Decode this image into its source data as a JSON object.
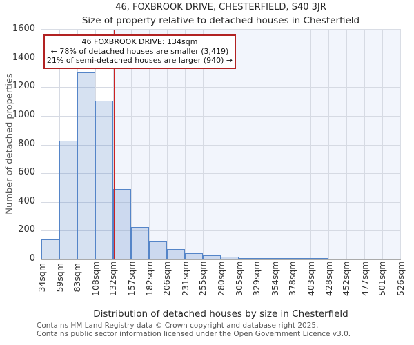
{
  "title": "46, FOXBROOK DRIVE, CHESTERFIELD, S40 3JR",
  "subtitle": "Size of property relative to detached houses in Chesterfield",
  "annotation": {
    "line1": "46 FOXBROOK DRIVE: 134sqm",
    "line2": "← 78% of detached houses are smaller (3,419)",
    "line3": "21% of semi-detached houses are larger (940) →"
  },
  "footer": {
    "line1": "Contains HM Land Registry data © Crown copyright and database right 2025.",
    "line2": "Contains public sector information licensed under the Open Government Licence v3.0."
  },
  "chart_data": {
    "type": "bar",
    "title": "46, FOXBROOK DRIVE, CHESTERFIELD, S40 3JR",
    "subtitle": "Size of property relative to detached houses in Chesterfield",
    "xlabel": "Distribution of detached houses by size in Chesterfield",
    "ylabel": "Number of detached properties",
    "bin_edges_sqm": [
      34,
      59,
      83,
      108,
      132,
      157,
      182,
      206,
      231,
      255,
      280,
      305,
      329,
      354,
      378,
      403,
      428,
      452,
      477,
      501,
      526
    ],
    "bin_labels": [
      "34sqm",
      "59sqm",
      "83sqm",
      "108sqm",
      "132sqm",
      "157sqm",
      "182sqm",
      "206sqm",
      "231sqm",
      "255sqm",
      "280sqm",
      "305sqm",
      "329sqm",
      "354sqm",
      "378sqm",
      "403sqm",
      "428sqm",
      "452sqm",
      "477sqm",
      "501sqm",
      "526sqm"
    ],
    "values": [
      140,
      825,
      1300,
      1105,
      490,
      225,
      130,
      70,
      45,
      30,
      20,
      10,
      5,
      5,
      5,
      5,
      0,
      0,
      0,
      0
    ],
    "ylim": [
      0,
      1600
    ],
    "yticks": [
      0,
      200,
      400,
      600,
      800,
      1000,
      1200,
      1400,
      1600
    ],
    "grid": true,
    "legend": false,
    "marker": {
      "x_sqm": 134,
      "label": "46 FOXBROOK DRIVE: 134sqm"
    },
    "colors": {
      "bar_fill": "rgba(91,135,199,0.25)",
      "bar_border": "#5585c8",
      "shade_fill": "#f2f5fc",
      "grid": "#d6dae3",
      "marker_line": "#cc2222",
      "annotation_border": "#b22222",
      "axis_line": "#ababab"
    }
  }
}
